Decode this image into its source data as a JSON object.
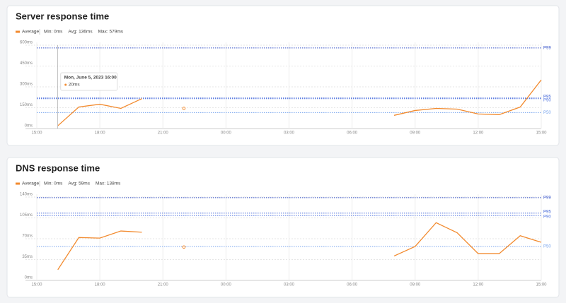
{
  "chart_data": [
    {
      "type": "line",
      "title": "Server response time",
      "stats": [
        "Min: 0ms",
        "Avg: 136ms",
        "Max: 579ms"
      ],
      "categories": [
        "15:00",
        null,
        null,
        "18:00",
        null,
        null,
        "21:00",
        null,
        null,
        "00:00",
        null,
        null,
        "03:00",
        null,
        null,
        "06:00",
        null,
        null,
        "09:00",
        null,
        null,
        "12:00",
        null,
        null,
        "15:00"
      ],
      "series": [
        {
          "name": "Average",
          "color": "#f28a2e",
          "values": [
            null,
            20,
            155,
            175,
            145,
            215,
            null,
            145,
            null,
            null,
            null,
            null,
            null,
            null,
            null,
            null,
            null,
            95,
            130,
            145,
            140,
            105,
            100,
            155,
            350
          ]
        }
      ],
      "ylim": [
        0,
        600
      ],
      "yticks": [
        {
          "value": 0,
          "label": "0ms"
        },
        {
          "value": 150,
          "label": "150ms"
        },
        {
          "value": 300,
          "label": "300ms"
        },
        {
          "value": 450,
          "label": "450ms"
        },
        {
          "value": 600,
          "label": "600ms"
        }
      ],
      "reference_lines": [
        {
          "name": "P99",
          "value": 580,
          "color": "#3451c8"
        },
        {
          "name": "P95",
          "value": 220,
          "color": "#3f63d6"
        },
        {
          "name": "P90",
          "value": 215,
          "color": "#4f73e0"
        },
        {
          "name": "P50",
          "value": 115,
          "color": "#7aa6ee"
        }
      ],
      "grid": true,
      "tooltip": {
        "title": "Mon, June 5, 2023 16:00",
        "text": "20ms"
      }
    },
    {
      "type": "line",
      "title": "DNS response time",
      "stats": [
        "Min: 0ms",
        "Avg: 59ms",
        "Max: 138ms"
      ],
      "categories": [
        "15:00",
        null,
        null,
        "18:00",
        null,
        null,
        "21:00",
        null,
        null,
        "00:00",
        null,
        null,
        "03:00",
        null,
        null,
        "06:00",
        null,
        null,
        "09:00",
        null,
        null,
        "12:00",
        null,
        null,
        "15:00"
      ],
      "series": [
        {
          "name": "Average",
          "color": "#f28a2e",
          "values": [
            null,
            18,
            72,
            71,
            83,
            81,
            null,
            56,
            null,
            null,
            null,
            null,
            null,
            null,
            null,
            null,
            null,
            41,
            57,
            97,
            80,
            45,
            45,
            75,
            64
          ]
        }
      ],
      "ylim": [
        0,
        140
      ],
      "yticks": [
        {
          "value": 0,
          "label": "0ms"
        },
        {
          "value": 35,
          "label": "35ms"
        },
        {
          "value": 70,
          "label": "70ms"
        },
        {
          "value": 105,
          "label": "105ms"
        },
        {
          "value": 140,
          "label": "140ms"
        }
      ],
      "reference_lines": [
        {
          "name": "P99",
          "value": 139,
          "color": "#3451c8"
        },
        {
          "name": "P95",
          "value": 113,
          "color": "#3f63d6"
        },
        {
          "name": "P90",
          "value": 109,
          "color": "#4f73e0"
        },
        {
          "name": "P50",
          "value": 57,
          "color": "#7aa6ee"
        }
      ],
      "grid": true
    }
  ]
}
